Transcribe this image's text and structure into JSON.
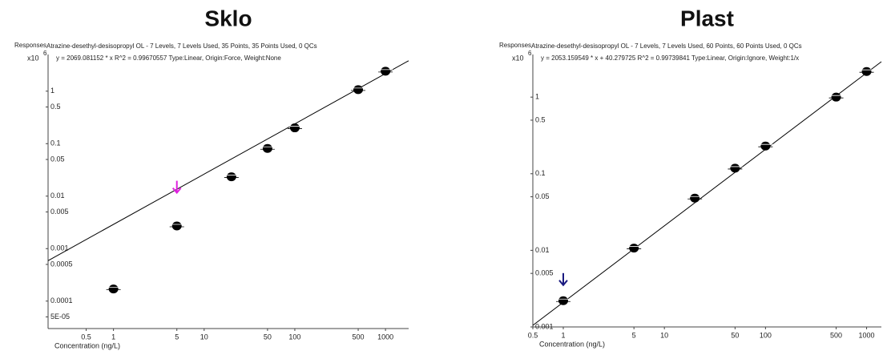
{
  "chart_data": [
    {
      "type": "scatter",
      "title": "Sklo",
      "y_label": "Responses",
      "y_multiplier": "x10",
      "y_exponent": "6",
      "info": "Atrazine-desethyl-desisopropyl OL - 7 Levels, 7 Levels Used, 35 Points, 35 Points Used, 0 QCs",
      "equation": "y = 2069.081152 * x  R^2 = 0.99670557  Type:Linear, Origin:Force, Weight:None",
      "x_label": "Concentration (ng/L)",
      "log_x": true,
      "log_y": true,
      "color": "#000000",
      "line_color": "#000000",
      "x": [
        1,
        5,
        20,
        50,
        100,
        500,
        1000
      ],
      "values": [
        0.00017,
        0.0027,
        0.0234,
        0.081,
        0.2,
        1.07,
        2.4
      ],
      "fit_line": {
        "x": [
          0.19,
          1800
        ],
        "y": [
          0.00059,
          3.8
        ]
      },
      "arrow": {
        "x": 5,
        "y": 0.012,
        "color": "#e020e0"
      },
      "xlim": [
        0.19,
        1800
      ],
      "ylim": [
        3e-05,
        5
      ],
      "xticks": [
        0.5,
        1,
        5,
        10,
        50,
        100,
        500,
        1000
      ],
      "yticks": [
        1,
        0.5,
        0.1,
        0.05,
        0.01,
        0.005,
        0.001,
        0.0005,
        0.0001,
        {
          "value": 5e-05,
          "label": "5E-05"
        }
      ]
    },
    {
      "type": "scatter",
      "title": "Plast",
      "y_label": "Responses",
      "y_multiplier": "x10",
      "y_exponent": "6",
      "info": "Atrazine-desethyl-desisopropyl OL - 7 Levels, 7 Levels Used, 60 Points, 60 Points Used, 0 QCs",
      "equation": "y = 2053.159549 * x  + 40.279725  R^2 = 0.99739841  Type:Linear, Origin:Ignore, Weight:1/x",
      "x_label": "Concentration (ng/L)",
      "log_x": true,
      "log_y": true,
      "color": "#000000",
      "line_color": "#000000",
      "x": [
        1,
        5,
        20,
        50,
        100,
        500,
        1000
      ],
      "values": [
        0.0022,
        0.0107,
        0.048,
        0.118,
        0.23,
        1.0,
        2.16
      ],
      "fit_line": {
        "x": [
          0.5,
          1400
        ],
        "y": [
          0.00105,
          2.9
        ]
      },
      "arrow": {
        "x": 1,
        "y": 0.0036,
        "color": "#1a1a80"
      },
      "xlim": [
        0.5,
        1400
      ],
      "ylim": [
        0.001,
        3.6
      ],
      "xticks": [
        0.5,
        1,
        5,
        10,
        50,
        100,
        500,
        1000
      ],
      "yticks": [
        1,
        0.5,
        0.1,
        0.05,
        0.01,
        0.005,
        0.001
      ]
    }
  ]
}
